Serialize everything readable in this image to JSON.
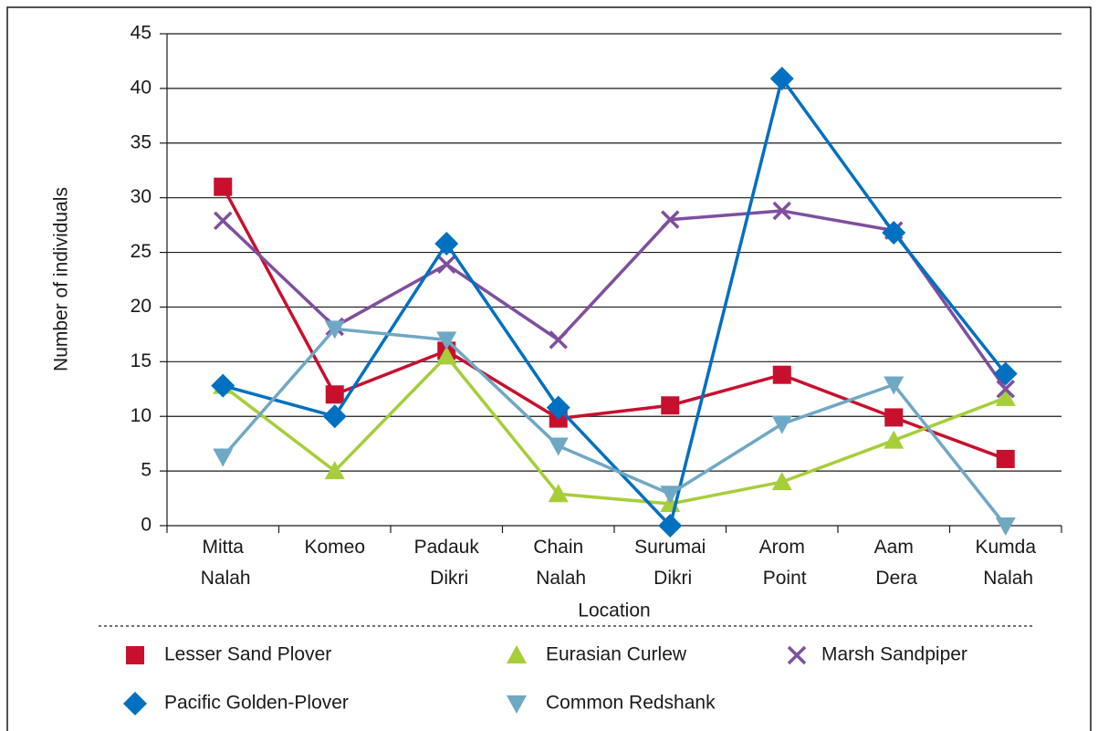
{
  "chart_data": {
    "type": "line",
    "x_label": "Location",
    "y_label": "Number of individuals",
    "categories": [
      "Mitta Nalah",
      "Komeo",
      "Padauk Dikri",
      "Chain Nalah",
      "Surumai Dikri",
      "Arom Point",
      "Aam Dera",
      "Kumda Nalah"
    ],
    "ylim": [
      0,
      45
    ],
    "yticks": [
      0,
      5,
      10,
      15,
      20,
      25,
      30,
      35,
      40,
      45
    ],
    "grid": true,
    "legend": "bottom",
    "series": [
      {
        "name": "Lesser Sand Plover",
        "color": "#c8102e",
        "marker": "square",
        "values": [
          31,
          12,
          16,
          9.8,
          11,
          13.8,
          9.9,
          6.1
        ]
      },
      {
        "name": "Eurasian Curlew",
        "color": "#a6ce39",
        "marker": "triangle-up",
        "values": [
          12.8,
          5,
          15.5,
          2.9,
          2,
          4,
          7.8,
          11.7
        ]
      },
      {
        "name": "Marsh Sandpiper",
        "color": "#7f4f9e",
        "marker": "cross",
        "values": [
          27.9,
          18.2,
          23.9,
          17,
          28,
          28.8,
          27,
          12.5
        ]
      },
      {
        "name": "Pacific Golden-Plover",
        "color": "#0070c0",
        "marker": "diamond",
        "values": [
          12.8,
          10,
          25.8,
          10.8,
          0,
          40.9,
          26.8,
          13.9
        ]
      },
      {
        "name": "Common Redshank",
        "color": "#6fa8c4",
        "marker": "triangle-down",
        "values": [
          6.3,
          18,
          17,
          7.3,
          2.9,
          9.3,
          12.9,
          0
        ]
      }
    ]
  }
}
